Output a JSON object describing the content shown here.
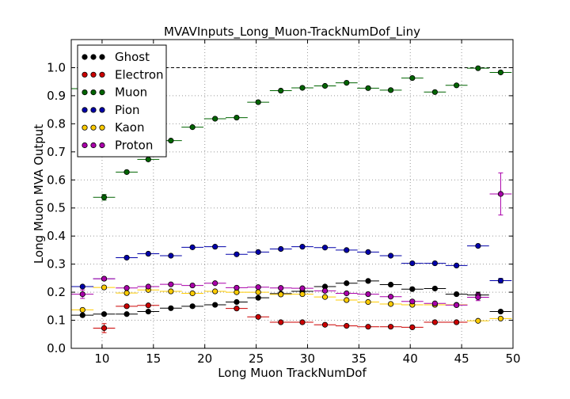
{
  "chart_data": {
    "type": "scatter",
    "title": "MVAVInputs_Long_Muon-TrackNumDof_Liny",
    "xlabel": "Long Muon TrackNumDof",
    "ylabel": "Long Muon MVA Output",
    "xlim": [
      7,
      50
    ],
    "ylim": [
      0.0,
      1.1
    ],
    "xticks": [
      10,
      15,
      20,
      25,
      30,
      35,
      40,
      45,
      50
    ],
    "yticks": [
      0.0,
      0.1,
      0.2,
      0.3,
      0.4,
      0.5,
      0.6,
      0.7,
      0.8,
      0.9,
      1.0
    ],
    "grid": true,
    "reference_line_y": 1.0,
    "legend_position": "top-left",
    "x": [
      8.1,
      10.2,
      12.4,
      14.5,
      16.7,
      18.8,
      21.0,
      23.1,
      25.2,
      27.4,
      29.5,
      31.7,
      33.8,
      35.9,
      38.1,
      40.2,
      42.4,
      44.5,
      46.6,
      48.8
    ],
    "x_halfwidth": 1.07,
    "series": [
      {
        "name": "Ghost",
        "color": "#000000",
        "values": [
          0.118,
          0.122,
          0.122,
          0.131,
          0.143,
          0.15,
          0.155,
          0.165,
          0.18,
          0.195,
          0.203,
          0.22,
          0.232,
          0.24,
          0.227,
          0.211,
          0.213,
          0.193,
          0.19,
          0.131
        ],
        "errors": [
          0,
          0,
          0,
          0,
          0,
          0,
          0,
          0,
          0,
          0,
          0,
          0,
          0,
          0,
          0,
          0,
          0,
          0,
          0.01,
          0
        ]
      },
      {
        "name": "Electron",
        "color": "#cc0000",
        "values": [
          null,
          0.072,
          0.15,
          0.153,
          null,
          null,
          null,
          0.142,
          0.112,
          0.093,
          0.093,
          0.084,
          0.08,
          0.077,
          0.077,
          0.075,
          0.093,
          0.093,
          null,
          null
        ],
        "errors": [
          0,
          0.016,
          0,
          0,
          0,
          0,
          0,
          0,
          0,
          0,
          0,
          0,
          0,
          0,
          0,
          0,
          0,
          0,
          0,
          0
        ]
      },
      {
        "name": "Muon",
        "color": "#006400",
        "values": [
          0.925,
          0.538,
          0.628,
          0.673,
          0.74,
          0.788,
          0.818,
          0.822,
          0.877,
          0.918,
          0.928,
          0.935,
          0.946,
          0.927,
          0.92,
          0.963,
          0.913,
          0.937,
          0.998,
          0.983
        ],
        "errors": [
          0,
          0.01,
          0,
          0,
          0,
          0,
          0,
          0,
          0,
          0,
          0,
          0,
          0,
          0,
          0,
          0,
          0,
          0,
          0,
          0
        ]
      },
      {
        "name": "Pion",
        "color": "#0000aa",
        "values": [
          0.22,
          0.248,
          0.323,
          0.337,
          0.33,
          0.36,
          0.362,
          0.335,
          0.343,
          0.354,
          0.362,
          0.359,
          0.35,
          0.343,
          0.33,
          0.303,
          0.303,
          0.295,
          0.365,
          0.241
        ],
        "errors": [
          0,
          0,
          0,
          0,
          0,
          0,
          0,
          0,
          0,
          0,
          0,
          0,
          0,
          0,
          0,
          0,
          0,
          0,
          0,
          0.008
        ]
      },
      {
        "name": "Kaon",
        "color": "#ffcc00",
        "values": [
          0.137,
          0.217,
          0.197,
          0.208,
          0.203,
          0.196,
          0.203,
          0.2,
          0.2,
          0.192,
          0.193,
          0.183,
          0.172,
          0.165,
          0.158,
          0.155,
          0.155,
          0.155,
          0.098,
          0.106
        ],
        "errors": [
          0,
          0,
          0,
          0,
          0,
          0,
          0,
          0,
          0,
          0,
          0,
          0,
          0,
          0,
          0,
          0,
          0,
          0,
          0,
          0
        ]
      },
      {
        "name": "Proton",
        "color": "#aa00aa",
        "values": [
          0.193,
          0.248,
          0.215,
          0.22,
          0.228,
          0.224,
          0.232,
          0.216,
          0.218,
          0.215,
          0.214,
          0.205,
          0.196,
          0.193,
          0.184,
          0.167,
          0.16,
          0.154,
          0.182,
          0.55
        ],
        "errors": [
          0.015,
          0,
          0,
          0,
          0,
          0,
          0,
          0,
          0,
          0,
          0,
          0,
          0,
          0,
          0,
          0,
          0,
          0,
          0.012,
          0.075
        ]
      }
    ]
  }
}
